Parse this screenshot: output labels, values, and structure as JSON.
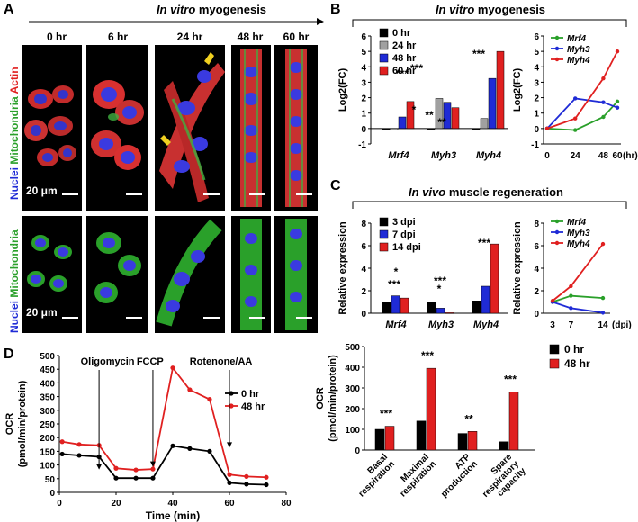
{
  "panels": {
    "A": {
      "letter": "A",
      "title_italic": "In vitro",
      "title_rest": " myogenesis",
      "timepoints": [
        "0 hr",
        "6 hr",
        "24 hr",
        "48 hr",
        "60 hr"
      ],
      "row1_label": {
        "nuclei": "Nuclei",
        "mito": "Mitochondria",
        "actin": "Actin"
      },
      "row2_label": {
        "nuclei": "Nuclei",
        "mito": "Mitochondria"
      },
      "scale_text": "20 μm"
    },
    "B": {
      "letter": "B",
      "title_italic": "In vitro",
      "title_rest": " myogenesis"
    },
    "C": {
      "letter": "C",
      "title_italic": "In vivo",
      "title_rest": " muscle regeneration"
    },
    "D": {
      "letter": "D"
    }
  },
  "colors": {
    "black": "#000000",
    "gray": "#a0a0a0",
    "blue": "#1f2bd6",
    "red": "#e02020",
    "green": "#2aa02a"
  },
  "chart_data": [
    {
      "id": "B-bar",
      "type": "bar",
      "ylabel": "Log2(FC)",
      "ylim": [
        -1,
        6
      ],
      "yticks": [
        -1,
        0,
        1,
        2,
        3,
        4,
        5,
        6
      ],
      "categories": [
        "Mrf4",
        "Myh3",
        "Myh4"
      ],
      "series": [
        {
          "name": "0 hr",
          "color": "#000000",
          "values": [
            0,
            0,
            0
          ]
        },
        {
          "name": "24 hr",
          "color": "#a0a0a0",
          "values": [
            -0.1,
            1.95,
            0.65
          ]
        },
        {
          "name": "48 hr",
          "color": "#1f2bd6",
          "values": [
            0.75,
            1.7,
            3.25
          ]
        },
        {
          "name": "60 hr",
          "color": "#e02020",
          "values": [
            1.75,
            1.35,
            5.0
          ]
        }
      ],
      "annotations": [
        "***",
        "***",
        "*",
        "**",
        "***",
        "**"
      ]
    },
    {
      "id": "B-line",
      "type": "line",
      "ylabel": "Log2(FC)",
      "ylim": [
        -1,
        6
      ],
      "yticks": [
        -1,
        0,
        1,
        2,
        3,
        4,
        5,
        6
      ],
      "x": [
        0,
        24,
        48,
        60
      ],
      "xticks": [
        "0",
        "24",
        "48",
        "60"
      ],
      "xunit": "(hr)",
      "series": [
        {
          "name": "Mrf4",
          "color": "#2aa02a",
          "values": [
            0,
            -0.1,
            0.75,
            1.75
          ]
        },
        {
          "name": "Myh3",
          "color": "#1f2bd6",
          "values": [
            0,
            1.95,
            1.7,
            1.35
          ]
        },
        {
          "name": "Myh4",
          "color": "#e02020",
          "values": [
            0,
            0.65,
            3.25,
            5.0
          ]
        }
      ]
    },
    {
      "id": "C-bar",
      "type": "bar",
      "ylabel": "Relative expression",
      "ylim": [
        0,
        8
      ],
      "yticks": [
        0,
        2,
        4,
        6,
        8
      ],
      "categories": [
        "Mrf4",
        "Myh3",
        "Myh4"
      ],
      "series": [
        {
          "name": "3 dpi",
          "color": "#000000",
          "values": [
            1.0,
            1.0,
            1.1
          ]
        },
        {
          "name": "7 dpi",
          "color": "#1f2bd6",
          "values": [
            1.55,
            0.45,
            2.4
          ]
        },
        {
          "name": "14 dpi",
          "color": "#e02020",
          "values": [
            1.35,
            0.05,
            6.15
          ]
        }
      ],
      "annotations": [
        "*",
        "***",
        "***",
        "*",
        "***"
      ]
    },
    {
      "id": "C-line",
      "type": "line",
      "ylabel": "Relative expression",
      "ylim": [
        0,
        8
      ],
      "yticks": [
        0,
        2,
        4,
        6,
        8
      ],
      "x": [
        3,
        7,
        14
      ],
      "xticks": [
        "3",
        "7",
        "14"
      ],
      "xunit": "(dpi)",
      "series": [
        {
          "name": "Mrf4",
          "color": "#2aa02a",
          "values": [
            1.0,
            1.55,
            1.35
          ]
        },
        {
          "name": "Myh3",
          "color": "#1f2bd6",
          "values": [
            1.0,
            0.45,
            0.05
          ]
        },
        {
          "name": "Myh4",
          "color": "#e02020",
          "values": [
            1.1,
            2.4,
            6.15
          ]
        }
      ]
    },
    {
      "id": "D-line",
      "type": "line",
      "xlabel": "Time (min)",
      "ylabel": "OCR\n(pmol/min/protein)",
      "xlim": [
        0,
        80
      ],
      "ylim": [
        0,
        500
      ],
      "xticks": [
        0,
        20,
        40,
        60,
        80
      ],
      "yticks": [
        0,
        50,
        100,
        150,
        200,
        250,
        300,
        350,
        400,
        450,
        500
      ],
      "x": [
        1,
        7,
        14,
        20,
        27,
        33,
        40,
        46,
        53,
        60,
        66,
        73
      ],
      "series": [
        {
          "name": "0 hr",
          "color": "#000000",
          "values": [
            140,
            135,
            130,
            52,
            52,
            52,
            170,
            160,
            150,
            35,
            30,
            28
          ]
        },
        {
          "name": "48 hr",
          "color": "#e02020",
          "values": [
            185,
            175,
            172,
            88,
            82,
            85,
            455,
            375,
            340,
            65,
            58,
            55
          ]
        }
      ],
      "annotations": [
        "Oligomycin",
        "FCCP",
        "Rotenone/AA"
      ]
    },
    {
      "id": "D-bar",
      "type": "bar",
      "ylabel": "OCR\n(pmol/min/protein)",
      "ylim": [
        0,
        500
      ],
      "yticks": [
        0,
        100,
        200,
        300,
        400,
        500
      ],
      "categories": [
        "Basal respiration",
        "Maximal respiration",
        "ATP production",
        "Spare respiratory capacity"
      ],
      "series": [
        {
          "name": "0 hr",
          "color": "#000000",
          "values": [
            100,
            140,
            80,
            40
          ]
        },
        {
          "name": "48 hr",
          "color": "#e02020",
          "values": [
            115,
            395,
            90,
            280
          ]
        }
      ],
      "annotations": [
        "***",
        "***",
        "**",
        "***"
      ]
    }
  ]
}
